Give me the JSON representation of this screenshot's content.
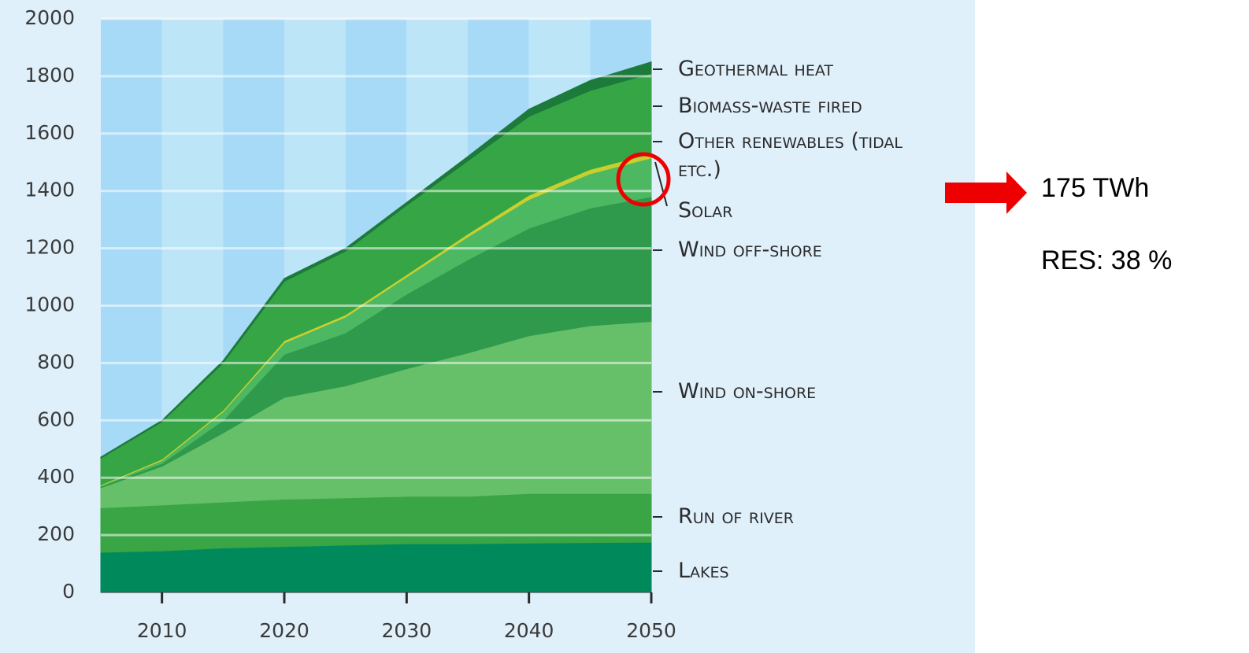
{
  "chart_data": {
    "type": "stacked_area",
    "x": [
      2005,
      2010,
      2015,
      2020,
      2025,
      2030,
      2035,
      2040,
      2045,
      2050
    ],
    "xlim": [
      2005,
      2050
    ],
    "xticks": [
      2010,
      2020,
      2030,
      2040,
      2050
    ],
    "ylim": [
      0,
      2000
    ],
    "yticks": [
      0,
      200,
      400,
      600,
      800,
      1000,
      1200,
      1400,
      1600,
      1800,
      2000
    ],
    "grid": true,
    "series": [
      {
        "name": "Lakes",
        "color": "#008a5c",
        "values": [
          140,
          145,
          155,
          160,
          165,
          170,
          170,
          172,
          174,
          175
        ]
      },
      {
        "name": "Run of river",
        "color": "#3aa545",
        "values": [
          155,
          160,
          160,
          165,
          165,
          165,
          165,
          173,
          171,
          170
        ]
      },
      {
        "name": "Wind on-shore",
        "color": "#66bf69",
        "values": [
          70,
          135,
          241,
          355,
          390,
          445,
          500,
          550,
          585,
          600
        ]
      },
      {
        "name": "Wind off-shore",
        "color": "#2f9a4b",
        "values": [
          5,
          10,
          44,
          150,
          185,
          260,
          325,
          375,
          410,
          435
        ]
      },
      {
        "name": "Solar",
        "color": "#4db862",
        "values": [
          2,
          10,
          30,
          40,
          55,
          60,
          80,
          100,
          120,
          135
        ]
      },
      {
        "name": "Other renewables (tidal etc.)",
        "color": "#c9cf2e",
        "values": [
          3,
          5,
          5,
          8,
          8,
          8,
          10,
          15,
          15,
          15
        ]
      },
      {
        "name": "Biomass-waste fired",
        "color": "#36a546",
        "values": [
          93,
          130,
          165,
          207,
          222,
          242,
          255,
          275,
          275,
          280
        ]
      },
      {
        "name": "Geothermal heat",
        "color": "#1c7a3b",
        "values": [
          4,
          5,
          8,
          10,
          10,
          10,
          15,
          25,
          35,
          40
        ]
      }
    ],
    "annotations": [
      "175 TWh",
      "RES: 38 %"
    ]
  }
}
